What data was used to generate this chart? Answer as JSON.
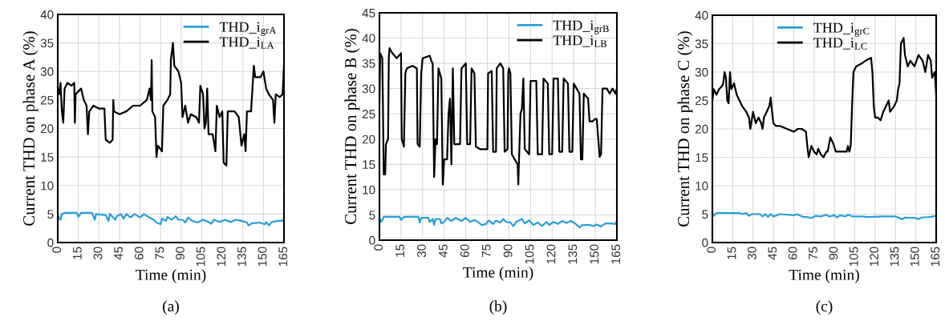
{
  "chart_data": [
    {
      "type": "line",
      "xlabel": "Time (min)",
      "ylabel": "Current THD on phase A (%)",
      "annotations": [
        "(a)"
      ],
      "xlim": [
        0,
        165
      ],
      "xticks": [
        0,
        15,
        30,
        45,
        60,
        75,
        90,
        105,
        120,
        135,
        150,
        165
      ],
      "ylim": [
        0,
        40
      ],
      "yticks": [
        0,
        5,
        10,
        15,
        20,
        25,
        30,
        35,
        40
      ],
      "grid": true,
      "legend": "top right",
      "series": [
        {
          "name": "THD_i$_{grA}$",
          "color": "#2a9fd8",
          "x": [
            0,
            1,
            2,
            3,
            5,
            14,
            15,
            17,
            25,
            27,
            28,
            35,
            37,
            38,
            42,
            43,
            46,
            48,
            50,
            53,
            56,
            60,
            63,
            66,
            70,
            72,
            75,
            76,
            79,
            80,
            83,
            86,
            88,
            91,
            93,
            95,
            98,
            102,
            106,
            110,
            112,
            114,
            118,
            122,
            126,
            130,
            134,
            138,
            139,
            142,
            147,
            151,
            152,
            154,
            156,
            161,
            164,
            165
          ],
          "values": [
            5,
            4.2,
            4,
            5,
            5.2,
            5.2,
            4.5,
            5.2,
            5.2,
            4,
            5,
            4.8,
            3.8,
            5,
            4,
            4.6,
            5,
            4.2,
            5,
            4.4,
            5,
            4.4,
            5,
            4.5,
            4,
            3.5,
            3.2,
            4.2,
            3.8,
            4.5,
            4,
            4.6,
            4,
            4,
            3.5,
            4.4,
            3.8,
            3.5,
            4,
            3.6,
            3.3,
            4,
            3.6,
            4,
            3.6,
            4,
            3.8,
            3.5,
            3,
            3.4,
            3.5,
            3.2,
            3.6,
            3,
            3.6,
            3.8,
            3.8,
            4.2
          ]
        },
        {
          "name": "THD_i$_{LA}$",
          "color": "#000000",
          "x": [
            0,
            1,
            2,
            3,
            4,
            5,
            7,
            10,
            12,
            12.5,
            13,
            17,
            19,
            21,
            22,
            23,
            26,
            30,
            34,
            35,
            38,
            40,
            40.5,
            41,
            45,
            50,
            55,
            60,
            65,
            67,
            68,
            68.5,
            69,
            71,
            72,
            73,
            76,
            77,
            80,
            82,
            82.5,
            83,
            84,
            85,
            88,
            90,
            91,
            93,
            95,
            97,
            101,
            103,
            104,
            106,
            107,
            108,
            109,
            110,
            113,
            115,
            116,
            118,
            120,
            121,
            123,
            124,
            129,
            132,
            134,
            136,
            137,
            138,
            141,
            143,
            144,
            148,
            150,
            152,
            154,
            157,
            158,
            159,
            162,
            164,
            165
          ],
          "values": [
            27,
            26,
            28,
            23,
            21,
            27,
            28,
            27.5,
            28,
            21,
            26,
            27,
            25,
            24,
            19,
            23,
            24,
            23.5,
            23.5,
            18,
            17.5,
            18,
            25,
            23,
            22.5,
            23,
            24,
            24,
            25,
            27,
            25,
            32,
            23,
            22,
            15,
            17,
            16,
            24,
            25,
            26,
            32,
            33,
            35,
            31,
            30,
            28,
            22,
            24,
            21,
            22.5,
            22,
            21,
            27.5,
            26,
            20,
            21,
            27,
            19,
            19,
            16,
            24,
            22,
            23,
            14,
            13.5,
            23,
            23,
            22,
            17,
            19,
            16,
            23,
            23,
            31,
            29,
            29,
            30,
            27,
            26,
            25,
            21,
            26,
            25.5,
            26,
            31
          ]
        }
      ]
    },
    {
      "type": "line",
      "xlabel": "Time (min)",
      "ylabel": "Current THD on phase B (%)",
      "annotations": [
        "(b)"
      ],
      "xlim": [
        0,
        165
      ],
      "xticks": [
        0,
        15,
        30,
        45,
        60,
        75,
        90,
        105,
        120,
        135,
        150,
        165
      ],
      "ylim": [
        0,
        45
      ],
      "yticks": [
        0,
        5,
        10,
        15,
        20,
        25,
        30,
        35,
        40,
        45
      ],
      "grid": true,
      "legend": "top right",
      "series": [
        {
          "name": "THD_i$_{grB}$",
          "color": "#2a9fd8",
          "x": [
            0,
            1,
            2,
            3,
            14,
            15,
            17,
            27,
            28,
            29,
            34,
            35,
            37,
            38,
            39,
            42,
            43,
            45,
            47,
            50,
            53,
            57,
            60,
            63,
            66,
            69,
            71,
            74,
            76,
            79,
            81,
            84,
            86,
            88,
            91,
            93,
            95,
            99,
            101,
            104,
            107,
            110,
            113,
            116,
            118,
            121,
            124,
            127,
            130,
            133,
            136,
            139,
            141,
            146,
            149,
            151,
            154,
            157,
            161,
            164,
            165
          ],
          "values": [
            4.5,
            3.6,
            4,
            4.6,
            4.6,
            4,
            4.6,
            4.6,
            3.5,
            4.4,
            4.4,
            3.6,
            4.2,
            3,
            4.2,
            4.2,
            3.3,
            3.6,
            4.4,
            3.8,
            4.4,
            3.8,
            4.4,
            3.6,
            4,
            3.5,
            3,
            3.2,
            3.9,
            3.2,
            3.9,
            3.5,
            4.2,
            3.6,
            3.5,
            2.8,
            3.6,
            4.2,
            3.3,
            3.9,
            3,
            3.5,
            2.8,
            3.6,
            3,
            3.6,
            3.2,
            3.8,
            3.4,
            3.8,
            3.3,
            2.5,
            3,
            3,
            2.8,
            3.1,
            2.7,
            3.3,
            3.3,
            3.2,
            3.8
          ]
        },
        {
          "name": "THD_i$_{LB}$",
          "color": "#000000",
          "x": [
            0,
            0.5,
            2,
            3,
            4,
            4.5,
            6,
            6.5,
            7,
            9,
            12,
            15,
            15.5,
            17,
            18,
            19,
            23,
            26,
            26.5,
            28,
            29,
            30,
            35,
            36,
            37,
            38,
            39,
            40,
            41,
            42,
            43,
            44,
            45,
            47,
            48,
            49,
            50,
            51,
            52,
            56,
            57,
            60,
            61,
            63,
            64,
            66,
            67,
            70,
            75,
            75.5,
            78,
            79,
            81,
            81.5,
            84,
            86,
            87,
            89,
            89.5,
            90,
            91,
            92,
            95,
            96,
            96.5,
            97,
            98,
            99,
            100,
            101,
            104,
            105,
            109,
            110,
            113,
            114,
            117,
            118,
            120,
            121,
            124,
            125,
            127,
            128,
            131,
            132,
            134,
            135,
            137,
            139,
            140,
            141,
            142,
            145,
            146,
            148,
            150,
            151,
            153,
            154,
            155,
            158,
            160,
            162,
            164,
            165
          ],
          "values": [
            27,
            37,
            36,
            13,
            13,
            19,
            20,
            36,
            38,
            37,
            36,
            37,
            20,
            18.5,
            33,
            34,
            34.5,
            34,
            19,
            18.5,
            33,
            36,
            36.5,
            35.5,
            35,
            12.5,
            20,
            19,
            34,
            33,
            32,
            11,
            16,
            16,
            25,
            28,
            15,
            34,
            19,
            19,
            34,
            35,
            19,
            19,
            34,
            33,
            18.5,
            18,
            18,
            33,
            33.5,
            17.5,
            17.5,
            34,
            35,
            34,
            17.5,
            18,
            33,
            34,
            33,
            17,
            15.5,
            15,
            11,
            16,
            25,
            26,
            32,
            18,
            17,
            31.5,
            31.5,
            17,
            17,
            32,
            31,
            17,
            17,
            32,
            32,
            17.5,
            17.5,
            32,
            31,
            17.5,
            17.5,
            31,
            30,
            29,
            16,
            16,
            29,
            28,
            23.5,
            23.5,
            24,
            24,
            16.5,
            17,
            30,
            30,
            29,
            30,
            29,
            30
          ]
        }
      ]
    },
    {
      "type": "line",
      "xlabel": "Time (min)",
      "ylabel": "Current THD on phase C (%)",
      "annotations": [
        "(c)"
      ],
      "xlim": [
        0,
        165
      ],
      "xticks": [
        0,
        15,
        30,
        45,
        60,
        75,
        90,
        105,
        120,
        135,
        150,
        165
      ],
      "ylim": [
        0,
        40
      ],
      "yticks": [
        0,
        5,
        10,
        15,
        20,
        25,
        30,
        35,
        40
      ],
      "grid": true,
      "legend": "top",
      "series": [
        {
          "name": "THD_i$_{grC}$",
          "color": "#2a9fd8",
          "x": [
            0,
            1,
            3,
            20,
            22,
            25,
            27,
            29,
            35,
            37,
            39,
            41,
            43,
            45,
            50,
            60,
            62,
            66,
            68,
            70,
            73,
            76,
            80,
            84,
            86,
            90,
            92,
            94,
            98,
            100,
            103,
            110,
            115,
            125,
            135,
            140,
            142,
            150,
            152,
            154,
            160,
            165
          ],
          "values": [
            5.2,
            4.7,
            5.2,
            5.2,
            5,
            5.2,
            4.7,
            5,
            5,
            4.6,
            5,
            4.5,
            5,
            4.6,
            5,
            4.8,
            5,
            4.6,
            4.5,
            4.5,
            4.3,
            4.7,
            4.6,
            4.9,
            4.6,
            4.8,
            4.4,
            4.8,
            4.6,
            4.9,
            4.6,
            4.6,
            4.5,
            4.6,
            4.6,
            4.1,
            4.4,
            4.3,
            4.1,
            4.4,
            4.5,
            4.7
          ]
        },
        {
          "name": "THD_i$_{LC}$",
          "color": "#000000",
          "x": [
            0,
            1,
            3,
            5,
            7,
            8,
            9,
            10,
            11,
            12,
            13,
            14,
            16,
            18,
            20,
            22,
            25,
            27,
            28,
            30,
            32,
            34,
            36,
            37,
            38,
            40,
            42,
            43,
            44,
            45,
            47,
            50,
            55,
            60,
            63,
            66,
            69,
            70,
            71,
            73,
            75,
            77,
            78,
            80,
            82,
            84,
            85,
            87,
            89,
            91,
            95,
            99,
            100,
            101,
            102,
            103,
            104,
            106,
            110,
            113,
            117,
            118,
            119,
            120,
            122,
            124,
            126,
            128,
            130,
            131,
            134,
            136,
            137,
            138,
            139,
            141,
            142,
            144,
            146,
            149,
            152,
            155,
            157,
            159,
            161,
            162,
            164,
            165
          ],
          "values": [
            25,
            27,
            26,
            27,
            27.5,
            28,
            30,
            29,
            25,
            24.5,
            30,
            27,
            28,
            26,
            25,
            24,
            23,
            22,
            20,
            23,
            21,
            22,
            21,
            20,
            22,
            23,
            24,
            25.5,
            23,
            21,
            20.5,
            20.5,
            20,
            19.5,
            20,
            20,
            19.5,
            17,
            15,
            17,
            16,
            15.5,
            16.5,
            15.5,
            15,
            16,
            16,
            18.5,
            17.5,
            16,
            16,
            16,
            17,
            16,
            17,
            24,
            30,
            31,
            31.5,
            32,
            32.5,
            30,
            24,
            22,
            22,
            21.5,
            23,
            24,
            25,
            23,
            24,
            25,
            27,
            28,
            35,
            36,
            33,
            31,
            32,
            31,
            33,
            32,
            30,
            33,
            32,
            29,
            30,
            26
          ]
        }
      ]
    }
  ]
}
